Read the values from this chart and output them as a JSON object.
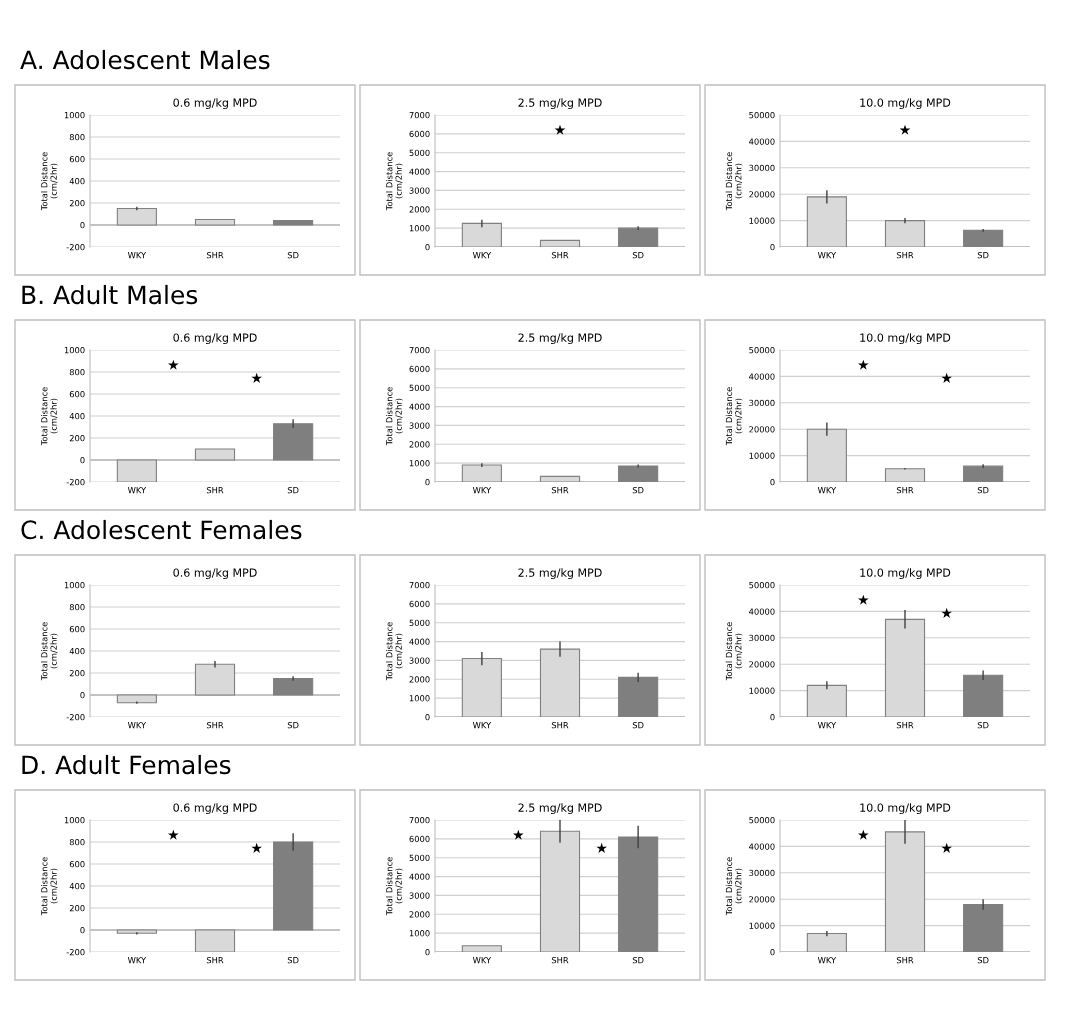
{
  "chart_data": [
    {
      "type": "bar",
      "subtitle": "A. Adolescent Males",
      "title": "0.6 mg/kg MPD",
      "ylabel": "Total Distance\n(cm/2hr)",
      "categories": [
        "WKY",
        "SHR",
        "SD"
      ],
      "values": [
        150,
        50,
        40
      ],
      "errors": [
        15,
        null,
        null
      ],
      "colors": [
        "#d9d9d9",
        "#d9d9d9",
        "#7f7f7f"
      ],
      "ylim": [
        -200,
        1000
      ],
      "yticks": [
        -200,
        0,
        200,
        400,
        600,
        800,
        1000
      ],
      "grid": "y"
    },
    {
      "type": "bar",
      "title": "2.5 mg/kg MPD",
      "ylabel": "Total Distance\n(cm/2hr)",
      "categories": [
        "WKY",
        "SHR",
        "SD"
      ],
      "values": [
        1250,
        350,
        1000
      ],
      "errors": [
        200,
        null,
        100
      ],
      "colors": [
        "#d9d9d9",
        "#d9d9d9",
        "#7f7f7f"
      ],
      "ylim": [
        0,
        7000
      ],
      "yticks": [
        0,
        1000,
        2000,
        3000,
        4000,
        5000,
        6000,
        7000
      ],
      "grid": "y",
      "annotations": [
        "★"
      ]
    },
    {
      "type": "bar",
      "title": "10.0 mg/kg MPD",
      "ylabel": "Total Distance\n(cm/2hr)",
      "categories": [
        "WKY",
        "SHR",
        "SD"
      ],
      "values": [
        19000,
        10000,
        6300
      ],
      "errors": [
        2500,
        1000,
        500
      ],
      "colors": [
        "#d9d9d9",
        "#d9d9d9",
        "#7f7f7f"
      ],
      "ylim": [
        0,
        50000
      ],
      "yticks": [
        0,
        10000,
        20000,
        30000,
        40000,
        50000
      ],
      "grid": "y",
      "annotations": [
        "★"
      ]
    },
    {
      "type": "bar",
      "subtitle": "B. Adult Males",
      "title": "0.6 mg/kg MPD",
      "ylabel": "Total Distance\n(cm/2hr)",
      "categories": [
        "WKY",
        "SHR",
        "SD"
      ],
      "values": [
        -200,
        100,
        330
      ],
      "errors": [
        null,
        null,
        40
      ],
      "colors": [
        "#d9d9d9",
        "#d9d9d9",
        "#7f7f7f"
      ],
      "ylim": [
        -200,
        1000
      ],
      "yticks": [
        -200,
        0,
        200,
        400,
        600,
        800,
        1000
      ],
      "grid": "y",
      "annotations": [
        "★",
        "★"
      ]
    },
    {
      "type": "bar",
      "title": "2.5 mg/kg MPD",
      "ylabel": "Total Distance\n(cm/2hr)",
      "categories": [
        "WKY",
        "SHR",
        "SD"
      ],
      "values": [
        900,
        300,
        850
      ],
      "errors": [
        100,
        null,
        80
      ],
      "colors": [
        "#d9d9d9",
        "#d9d9d9",
        "#7f7f7f"
      ],
      "ylim": [
        0,
        7000
      ],
      "yticks": [
        0,
        1000,
        2000,
        3000,
        4000,
        5000,
        6000,
        7000
      ],
      "grid": "y"
    },
    {
      "type": "bar",
      "title": "10.0 mg/kg MPD",
      "ylabel": "Total Distance\n(cm/2hr)",
      "categories": [
        "WKY",
        "SHR",
        "SD"
      ],
      "values": [
        20000,
        5000,
        6000
      ],
      "errors": [
        2500,
        300,
        700
      ],
      "colors": [
        "#d9d9d9",
        "#d9d9d9",
        "#7f7f7f"
      ],
      "ylim": [
        0,
        50000
      ],
      "yticks": [
        0,
        10000,
        20000,
        30000,
        40000,
        50000
      ],
      "grid": "y",
      "annotations": [
        "★",
        "★"
      ]
    },
    {
      "type": "bar",
      "subtitle": "C. Adolescent Females",
      "title": "0.6 mg/kg MPD",
      "ylabel": "Total Distance\n(cm/2hr)",
      "categories": [
        "WKY",
        "SHR",
        "SD"
      ],
      "values": [
        -70,
        280,
        150
      ],
      "errors": [
        10,
        30,
        20
      ],
      "colors": [
        "#d9d9d9",
        "#d9d9d9",
        "#7f7f7f"
      ],
      "ylim": [
        -200,
        1000
      ],
      "yticks": [
        -200,
        0,
        200,
        400,
        600,
        800,
        1000
      ],
      "grid": "y"
    },
    {
      "type": "bar",
      "title": "2.5 mg/kg MPD",
      "ylabel": "Total Distance\n(cm/2hr)",
      "categories": [
        "WKY",
        "SHR",
        "SD"
      ],
      "values": [
        3100,
        3600,
        2100
      ],
      "errors": [
        350,
        400,
        250
      ],
      "colors": [
        "#d9d9d9",
        "#d9d9d9",
        "#7f7f7f"
      ],
      "ylim": [
        0,
        7000
      ],
      "yticks": [
        0,
        1000,
        2000,
        3000,
        4000,
        5000,
        6000,
        7000
      ],
      "grid": "y"
    },
    {
      "type": "bar",
      "title": "10.0 mg/kg MPD",
      "ylabel": "Total Distance\n(cm/2hr)",
      "categories": [
        "WKY",
        "SHR",
        "SD"
      ],
      "values": [
        12000,
        37000,
        15800
      ],
      "errors": [
        1500,
        3500,
        1800
      ],
      "colors": [
        "#d9d9d9",
        "#d9d9d9",
        "#7f7f7f"
      ],
      "ylim": [
        0,
        50000
      ],
      "yticks": [
        0,
        10000,
        20000,
        30000,
        40000,
        50000
      ],
      "grid": "y",
      "annotations": [
        "★",
        "★"
      ]
    },
    {
      "type": "bar",
      "subtitle": "D. Adult Females",
      "title": "0.6 mg/kg MPD",
      "ylabel": "Total Distance\n(cm/2hr)",
      "categories": [
        "WKY",
        "SHR",
        "SD"
      ],
      "values": [
        -30,
        -200,
        800
      ],
      "errors": [
        10,
        null,
        80
      ],
      "colors": [
        "#d9d9d9",
        "#d9d9d9",
        "#7f7f7f"
      ],
      "ylim": [
        -200,
        1000
      ],
      "yticks": [
        -200,
        0,
        200,
        400,
        600,
        800,
        1000
      ],
      "grid": "y",
      "annotations": [
        "★",
        "★"
      ]
    },
    {
      "type": "bar",
      "title": "2.5 mg/kg MPD",
      "ylabel": "Total Distance\n(cm/2hr)",
      "categories": [
        "WKY",
        "SHR",
        "SD"
      ],
      "values": [
        330,
        6400,
        6100
      ],
      "errors": [
        null,
        600,
        600
      ],
      "colors": [
        "#d9d9d9",
        "#d9d9d9",
        "#7f7f7f"
      ],
      "ylim": [
        0,
        7000
      ],
      "yticks": [
        0,
        1000,
        2000,
        3000,
        4000,
        5000,
        6000,
        7000
      ],
      "grid": "y",
      "annotations": [
        "★",
        "★"
      ]
    },
    {
      "type": "bar",
      "title": "10.0 mg/kg MPD",
      "ylabel": "Total Distance\n(cm/2hr)",
      "categories": [
        "WKY",
        "SHR",
        "SD"
      ],
      "values": [
        7000,
        45500,
        18000
      ],
      "errors": [
        1000,
        4500,
        2000
      ],
      "colors": [
        "#d9d9d9",
        "#d9d9d9",
        "#7f7f7f"
      ],
      "ylim": [
        0,
        50000
      ],
      "yticks": [
        0,
        10000,
        20000,
        30000,
        40000,
        50000
      ],
      "grid": "y",
      "annotations": [
        "★",
        "★"
      ]
    }
  ]
}
